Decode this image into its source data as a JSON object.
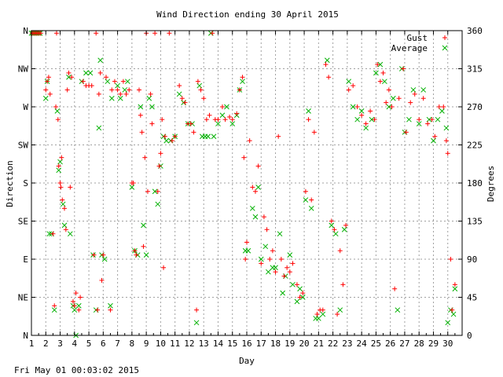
{
  "chart_data": {
    "type": "scatter",
    "title": "Wind Direction ending 30 April 2015",
    "xlabel": "Day",
    "ylabel_left": "Direction",
    "ylabel_right": "Degrees",
    "xlim": [
      1,
      31
    ],
    "ylim": [
      0,
      360
    ],
    "x_ticks": [
      "1",
      "2",
      "3",
      "4",
      "5",
      "6",
      "7",
      "8",
      "9",
      "10",
      "11",
      "12",
      "13",
      "14",
      "15",
      "16",
      "17",
      "18",
      "19",
      "20",
      "21",
      "22",
      "23",
      "24",
      "25",
      "26",
      "27",
      "28",
      "29",
      "30"
    ],
    "y_ticks_left": [
      "N",
      "NE",
      "E",
      "SE",
      "S",
      "SW",
      "W",
      "NW",
      "N"
    ],
    "y_ticks_right": [
      "0",
      "45",
      "90",
      "135",
      "180",
      "225",
      "270",
      "315",
      "360"
    ],
    "grid": true,
    "legend_position": "top-right",
    "series": [
      {
        "name": "Gust",
        "color": "#ff0000",
        "marker": "plus",
        "points": [
          [
            1.05,
            357
          ],
          [
            1.15,
            357
          ],
          [
            1.25,
            357
          ],
          [
            1.35,
            357
          ],
          [
            1.45,
            357
          ],
          [
            1.55,
            357
          ],
          [
            1.65,
            357
          ],
          [
            2.0,
            290
          ],
          [
            2.1,
            300
          ],
          [
            2.2,
            305
          ],
          [
            2.3,
            285
          ],
          [
            2.5,
            120
          ],
          [
            2.6,
            35
          ],
          [
            2.7,
            270
          ],
          [
            2.75,
            357
          ],
          [
            2.85,
            255
          ],
          [
            2.9,
            200
          ],
          [
            3.0,
            180
          ],
          [
            3.05,
            175
          ],
          [
            3.1,
            210
          ],
          [
            3.15,
            160
          ],
          [
            3.3,
            150
          ],
          [
            3.4,
            125
          ],
          [
            3.5,
            290
          ],
          [
            3.6,
            310
          ],
          [
            3.7,
            175
          ],
          [
            3.8,
            305
          ],
          [
            3.9,
            40
          ],
          [
            4.0,
            35
          ],
          [
            4.1,
            50
          ],
          [
            4.3,
            30
          ],
          [
            4.4,
            45
          ],
          [
            4.6,
            300
          ],
          [
            4.8,
            295
          ],
          [
            5.0,
            295
          ],
          [
            5.2,
            295
          ],
          [
            5.35,
            95
          ],
          [
            5.5,
            357
          ],
          [
            5.6,
            30
          ],
          [
            5.7,
            285
          ],
          [
            5.8,
            310
          ],
          [
            5.9,
            65
          ],
          [
            6.0,
            95
          ],
          [
            6.2,
            305
          ],
          [
            6.5,
            30
          ],
          [
            6.6,
            290
          ],
          [
            6.8,
            300
          ],
          [
            7.0,
            290
          ],
          [
            7.2,
            285
          ],
          [
            7.4,
            300
          ],
          [
            7.6,
            285
          ],
          [
            7.8,
            290
          ],
          [
            8.0,
            180
          ],
          [
            8.1,
            180
          ],
          [
            8.2,
            100
          ],
          [
            8.3,
            95
          ],
          [
            8.5,
            290
          ],
          [
            8.6,
            260
          ],
          [
            8.7,
            240
          ],
          [
            8.8,
            105
          ],
          [
            8.9,
            210
          ],
          [
            9.0,
            357
          ],
          [
            9.1,
            170
          ],
          [
            9.3,
            285
          ],
          [
            9.4,
            250
          ],
          [
            9.6,
            357
          ],
          [
            9.8,
            170
          ],
          [
            9.9,
            200
          ],
          [
            10.0,
            215
          ],
          [
            10.1,
            255
          ],
          [
            10.2,
            80
          ],
          [
            10.3,
            235
          ],
          [
            10.6,
            357
          ],
          [
            10.8,
            230
          ],
          [
            11.0,
            235
          ],
          [
            11.3,
            295
          ],
          [
            11.5,
            280
          ],
          [
            11.7,
            275
          ],
          [
            11.9,
            250
          ],
          [
            12.1,
            250
          ],
          [
            12.3,
            240
          ],
          [
            12.5,
            30
          ],
          [
            12.6,
            300
          ],
          [
            12.8,
            290
          ],
          [
            13.0,
            280
          ],
          [
            13.2,
            255
          ],
          [
            13.4,
            260
          ],
          [
            13.6,
            357
          ],
          [
            13.8,
            255
          ],
          [
            14.0,
            255
          ],
          [
            14.3,
            270
          ],
          [
            14.5,
            255
          ],
          [
            14.8,
            258
          ],
          [
            15.0,
            255
          ],
          [
            15.3,
            262
          ],
          [
            15.5,
            290
          ],
          [
            15.7,
            305
          ],
          [
            15.8,
            210
          ],
          [
            15.9,
            90
          ],
          [
            16.0,
            110
          ],
          [
            16.2,
            230
          ],
          [
            16.4,
            175
          ],
          [
            16.6,
            170
          ],
          [
            16.8,
            200
          ],
          [
            17.0,
            85
          ],
          [
            17.2,
            140
          ],
          [
            17.4,
            125
          ],
          [
            17.6,
            90
          ],
          [
            17.8,
            100
          ],
          [
            18.0,
            75
          ],
          [
            18.2,
            235
          ],
          [
            18.4,
            90
          ],
          [
            18.6,
            70
          ],
          [
            18.8,
            80
          ],
          [
            19.0,
            75
          ],
          [
            19.2,
            85
          ],
          [
            19.5,
            60
          ],
          [
            19.7,
            45
          ],
          [
            19.9,
            50
          ],
          [
            20.1,
            170
          ],
          [
            20.3,
            255
          ],
          [
            20.5,
            160
          ],
          [
            20.7,
            240
          ],
          [
            20.9,
            25
          ],
          [
            21.1,
            30
          ],
          [
            21.3,
            30
          ],
          [
            21.5,
            320
          ],
          [
            21.7,
            305
          ],
          [
            21.9,
            135
          ],
          [
            22.1,
            125
          ],
          [
            22.3,
            25
          ],
          [
            22.5,
            100
          ],
          [
            22.7,
            60
          ],
          [
            22.9,
            130
          ],
          [
            23.1,
            290
          ],
          [
            23.4,
            295
          ],
          [
            23.7,
            270
          ],
          [
            24.0,
            260
          ],
          [
            24.3,
            250
          ],
          [
            24.6,
            265
          ],
          [
            24.9,
            255
          ],
          [
            25.1,
            320
          ],
          [
            25.3,
            300
          ],
          [
            25.5,
            310
          ],
          [
            25.7,
            275
          ],
          [
            25.9,
            290
          ],
          [
            26.1,
            270
          ],
          [
            26.3,
            55
          ],
          [
            26.6,
            280
          ],
          [
            26.9,
            315
          ],
          [
            27.1,
            240
          ],
          [
            27.4,
            275
          ],
          [
            27.7,
            285
          ],
          [
            28.0,
            255
          ],
          [
            28.3,
            280
          ],
          [
            28.6,
            250
          ],
          [
            28.9,
            255
          ],
          [
            29.1,
            235
          ],
          [
            29.4,
            270
          ],
          [
            29.7,
            270
          ],
          [
            29.9,
            230
          ],
          [
            30.0,
            215
          ],
          [
            30.2,
            90
          ],
          [
            30.3,
            30
          ],
          [
            30.5,
            60
          ]
        ]
      },
      {
        "name": "Average",
        "color": "#00b000",
        "marker": "cross",
        "points": [
          [
            1.0,
            357
          ],
          [
            1.1,
            357
          ],
          [
            1.2,
            357
          ],
          [
            1.3,
            357
          ],
          [
            1.4,
            357
          ],
          [
            1.5,
            357
          ],
          [
            1.6,
            357
          ],
          [
            2.0,
            280
          ],
          [
            2.1,
            300
          ],
          [
            2.25,
            120
          ],
          [
            2.4,
            120
          ],
          [
            2.6,
            30
          ],
          [
            2.8,
            265
          ],
          [
            2.9,
            195
          ],
          [
            3.0,
            205
          ],
          [
            3.2,
            155
          ],
          [
            3.3,
            130
          ],
          [
            3.6,
            305
          ],
          [
            3.7,
            120
          ],
          [
            3.9,
            35
          ],
          [
            4.0,
            30
          ],
          [
            4.1,
            0
          ],
          [
            4.3,
            35
          ],
          [
            4.5,
            300
          ],
          [
            4.8,
            310
          ],
          [
            5.1,
            310
          ],
          [
            5.3,
            95
          ],
          [
            5.5,
            30
          ],
          [
            5.7,
            245
          ],
          [
            5.8,
            325
          ],
          [
            5.9,
            95
          ],
          [
            6.1,
            90
          ],
          [
            6.3,
            300
          ],
          [
            6.5,
            35
          ],
          [
            6.6,
            280
          ],
          [
            7.0,
            295
          ],
          [
            7.2,
            280
          ],
          [
            7.5,
            290
          ],
          [
            7.7,
            300
          ],
          [
            8.0,
            175
          ],
          [
            8.2,
            100
          ],
          [
            8.4,
            95
          ],
          [
            8.6,
            270
          ],
          [
            8.8,
            130
          ],
          [
            9.0,
            95
          ],
          [
            9.2,
            280
          ],
          [
            9.4,
            270
          ],
          [
            9.6,
            170
          ],
          [
            9.8,
            155
          ],
          [
            10.0,
            200
          ],
          [
            10.2,
            235
          ],
          [
            10.4,
            230
          ],
          [
            10.7,
            230
          ],
          [
            11.0,
            235
          ],
          [
            11.3,
            285
          ],
          [
            11.6,
            275
          ],
          [
            11.9,
            250
          ],
          [
            12.2,
            250
          ],
          [
            12.5,
            15
          ],
          [
            12.7,
            295
          ],
          [
            12.9,
            235
          ],
          [
            13.1,
            235
          ],
          [
            13.3,
            235
          ],
          [
            13.5,
            357
          ],
          [
            13.7,
            235
          ],
          [
            14.0,
            250
          ],
          [
            14.3,
            260
          ],
          [
            14.6,
            270
          ],
          [
            15.0,
            250
          ],
          [
            15.3,
            260
          ],
          [
            15.5,
            290
          ],
          [
            15.7,
            300
          ],
          [
            15.9,
            100
          ],
          [
            16.1,
            100
          ],
          [
            16.4,
            150
          ],
          [
            16.6,
            140
          ],
          [
            16.8,
            175
          ],
          [
            17.0,
            90
          ],
          [
            17.3,
            105
          ],
          [
            17.5,
            75
          ],
          [
            17.8,
            80
          ],
          [
            18.0,
            80
          ],
          [
            18.3,
            120
          ],
          [
            18.5,
            50
          ],
          [
            18.7,
            70
          ],
          [
            19.0,
            95
          ],
          [
            19.2,
            60
          ],
          [
            19.5,
            40
          ],
          [
            19.7,
            55
          ],
          [
            19.9,
            45
          ],
          [
            20.1,
            160
          ],
          [
            20.3,
            265
          ],
          [
            20.5,
            150
          ],
          [
            20.8,
            20
          ],
          [
            21.0,
            20
          ],
          [
            21.3,
            25
          ],
          [
            21.6,
            325
          ],
          [
            21.9,
            130
          ],
          [
            22.2,
            120
          ],
          [
            22.5,
            30
          ],
          [
            22.8,
            125
          ],
          [
            23.1,
            300
          ],
          [
            23.4,
            270
          ],
          [
            23.7,
            255
          ],
          [
            24.0,
            265
          ],
          [
            24.3,
            245
          ],
          [
            24.7,
            255
          ],
          [
            25.0,
            310
          ],
          [
            25.3,
            320
          ],
          [
            25.6,
            300
          ],
          [
            25.9,
            270
          ],
          [
            26.2,
            280
          ],
          [
            26.5,
            30
          ],
          [
            26.8,
            315
          ],
          [
            27.0,
            240
          ],
          [
            27.3,
            255
          ],
          [
            27.6,
            290
          ],
          [
            28.0,
            250
          ],
          [
            28.3,
            290
          ],
          [
            28.7,
            255
          ],
          [
            29.0,
            230
          ],
          [
            29.3,
            255
          ],
          [
            29.6,
            265
          ],
          [
            29.9,
            245
          ],
          [
            30.0,
            15
          ],
          [
            30.2,
            30
          ],
          [
            30.4,
            25
          ],
          [
            30.5,
            55
          ]
        ]
      }
    ]
  },
  "footer": {
    "timestamp": "Fri May 01 00:03:02 2015"
  }
}
